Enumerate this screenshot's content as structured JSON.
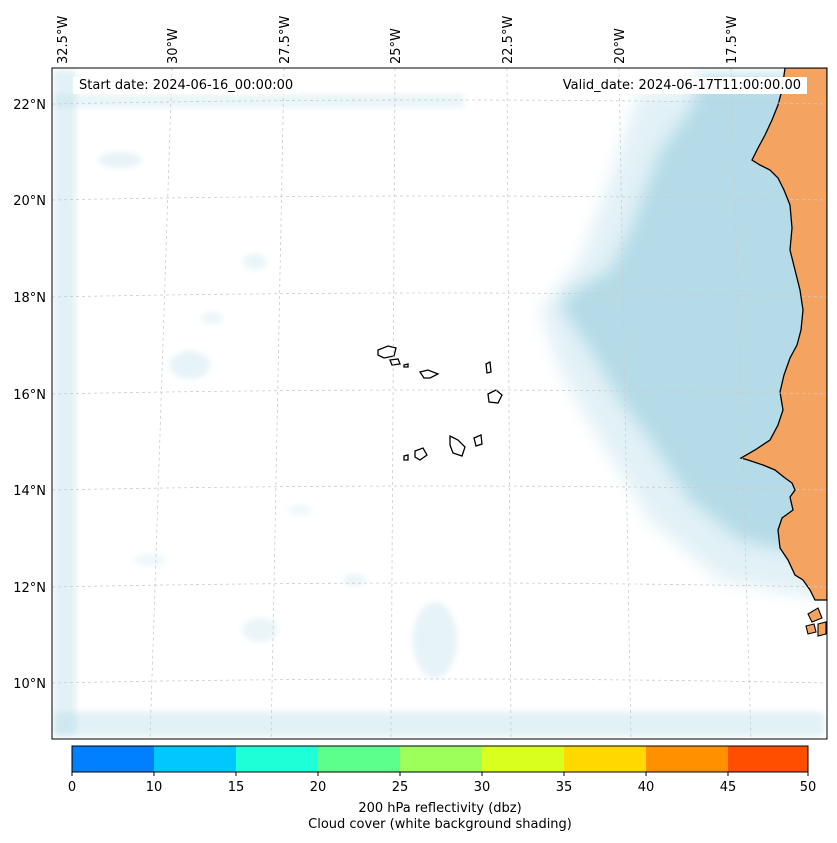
{
  "map": {
    "start_date": "Start date: 2024-06-16_00:00:00",
    "valid_date": "Valid_date: 2024-06-17T11:00:00.00",
    "lon_labels": [
      "32.5°W",
      "30°W",
      "27.5°W",
      "25°W",
      "22.5°W",
      "20°W",
      "17.5°W"
    ],
    "lat_labels": [
      "22°N",
      "20°N",
      "18°N",
      "16°N",
      "14°N",
      "12°N",
      "10°N"
    ],
    "extent": {
      "lon_min": -33.0,
      "lon_max": -15.7,
      "lat_min": 9.0,
      "lat_max": 22.7
    },
    "colors": {
      "land": "#f4a460",
      "cloud": "#add8e6",
      "coast": "#000000",
      "grid": "#cccccc"
    }
  },
  "colorbar": {
    "ticks": [
      "0",
      "10",
      "15",
      "20",
      "25",
      "30",
      "35",
      "40",
      "45",
      "50"
    ],
    "colors": [
      "#0080ff",
      "#00c8ff",
      "#1effd8",
      "#5cff8c",
      "#9cff5a",
      "#d8ff1e",
      "#ffd800",
      "#ff9000",
      "#ff4e00"
    ],
    "title_line1": "200 hPa reflectivity (dbz)",
    "title_line2": "Cloud cover (white background shading)"
  }
}
